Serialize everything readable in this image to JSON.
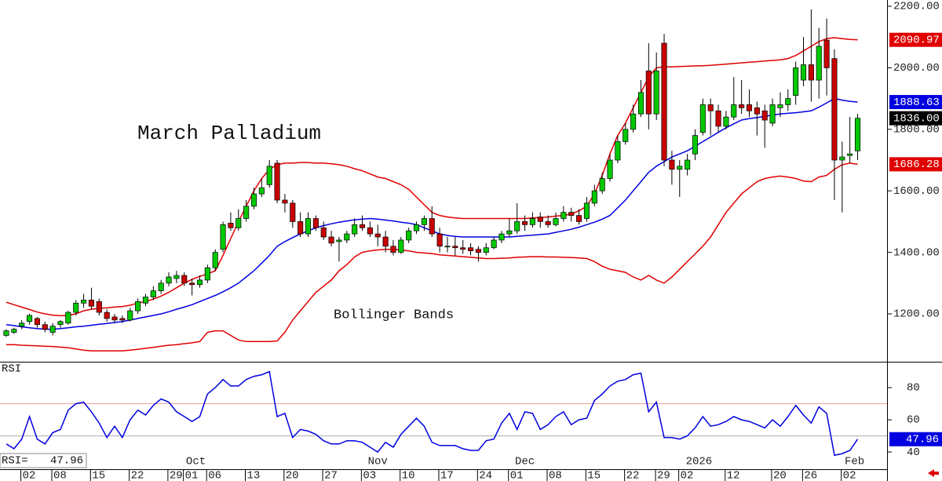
{
  "chart_data": {
    "type": "candlestick",
    "title": "March Palladium",
    "annotation": "Bollinger Bands",
    "xlim": [
      -0.81,
      113.8
    ],
    "ylim": [
      1047,
      2220.4
    ],
    "yticks": [
      {
        "value": 2200,
        "label": "2200.00"
      },
      {
        "value": 2000,
        "label": "2000.00"
      },
      {
        "value": 1800,
        "label": "1800.00"
      },
      {
        "value": 1600,
        "label": "1600.00"
      },
      {
        "value": 1400,
        "label": "1400.00"
      },
      {
        "value": 1200,
        "label": "1200.00"
      }
    ],
    "xticks": [
      {
        "value": 3,
        "label": "02"
      },
      {
        "value": 7,
        "label": "08"
      },
      {
        "value": 12,
        "label": "15"
      },
      {
        "value": 17,
        "label": "22"
      },
      {
        "value": 22,
        "label": "29"
      },
      {
        "value": 24,
        "label": "01"
      },
      {
        "value": 27,
        "label": "06"
      },
      {
        "value": 32,
        "label": "13"
      },
      {
        "value": 37,
        "label": "20"
      },
      {
        "value": 42,
        "label": "27"
      },
      {
        "value": 47,
        "label": "03"
      },
      {
        "value": 52,
        "label": "10"
      },
      {
        "value": 57,
        "label": "17"
      },
      {
        "value": 62,
        "label": "24"
      },
      {
        "value": 66,
        "label": "01"
      },
      {
        "value": 71,
        "label": "08"
      },
      {
        "value": 76,
        "label": "15"
      },
      {
        "value": 81,
        "label": "22"
      },
      {
        "value": 85,
        "label": "29"
      },
      {
        "value": 88,
        "label": "02"
      },
      {
        "value": 94,
        "label": "12"
      },
      {
        "value": 100,
        "label": "20"
      },
      {
        "value": 104,
        "label": "26"
      },
      {
        "value": 109,
        "label": "02"
      }
    ],
    "month_labels": [
      {
        "value": 24.5,
        "label": "Oct"
      },
      {
        "value": 48,
        "label": "Nov"
      },
      {
        "value": 67,
        "label": "Dec"
      },
      {
        "value": 89.5,
        "label": "2026"
      },
      {
        "value": 109.6,
        "label": "Feb"
      }
    ],
    "up_color": "#00c800",
    "down_color": "#c80000",
    "ohlc": [
      [
        1130,
        1150,
        1125,
        1145
      ],
      [
        1140,
        1155,
        1135,
        1150
      ],
      [
        1160,
        1180,
        1150,
        1170
      ],
      [
        1175,
        1200,
        1165,
        1195
      ],
      [
        1185,
        1190,
        1155,
        1165
      ],
      [
        1165,
        1175,
        1140,
        1150
      ],
      [
        1140,
        1170,
        1130,
        1160
      ],
      [
        1165,
        1180,
        1155,
        1175
      ],
      [
        1170,
        1210,
        1165,
        1205
      ],
      [
        1205,
        1245,
        1195,
        1235
      ],
      [
        1235,
        1265,
        1220,
        1245
      ],
      [
        1245,
        1285,
        1215,
        1225
      ],
      [
        1240,
        1250,
        1195,
        1205
      ],
      [
        1205,
        1215,
        1175,
        1185
      ],
      [
        1190,
        1200,
        1170,
        1180
      ],
      [
        1185,
        1195,
        1170,
        1180
      ],
      [
        1180,
        1220,
        1175,
        1210
      ],
      [
        1210,
        1250,
        1200,
        1240
      ],
      [
        1235,
        1265,
        1225,
        1255
      ],
      [
        1255,
        1290,
        1245,
        1275
      ],
      [
        1275,
        1310,
        1265,
        1300
      ],
      [
        1300,
        1335,
        1290,
        1320
      ],
      [
        1315,
        1340,
        1300,
        1325
      ],
      [
        1325,
        1335,
        1290,
        1300
      ],
      [
        1300,
        1315,
        1260,
        1295
      ],
      [
        1295,
        1325,
        1285,
        1310
      ],
      [
        1310,
        1360,
        1300,
        1350
      ],
      [
        1350,
        1410,
        1340,
        1400
      ],
      [
        1410,
        1500,
        1400,
        1490
      ],
      [
        1495,
        1530,
        1470,
        1480
      ],
      [
        1480,
        1540,
        1470,
        1510
      ],
      [
        1510,
        1570,
        1500,
        1550
      ],
      [
        1550,
        1610,
        1540,
        1590
      ],
      [
        1590,
        1640,
        1580,
        1610
      ],
      [
        1620,
        1700,
        1610,
        1680
      ],
      [
        1690,
        1700,
        1560,
        1570
      ],
      [
        1570,
        1590,
        1530,
        1560
      ],
      [
        1560,
        1570,
        1480,
        1500
      ],
      [
        1500,
        1530,
        1450,
        1460
      ],
      [
        1460,
        1530,
        1450,
        1510
      ],
      [
        1510,
        1520,
        1470,
        1480
      ],
      [
        1480,
        1500,
        1440,
        1450
      ],
      [
        1450,
        1470,
        1420,
        1430
      ],
      [
        1435,
        1450,
        1370,
        1440
      ],
      [
        1440,
        1470,
        1430,
        1460
      ],
      [
        1460,
        1510,
        1450,
        1490
      ],
      [
        1490,
        1520,
        1470,
        1480
      ],
      [
        1480,
        1500,
        1450,
        1460
      ],
      [
        1460,
        1490,
        1420,
        1450
      ],
      [
        1450,
        1470,
        1400,
        1420
      ],
      [
        1420,
        1440,
        1390,
        1400
      ],
      [
        1400,
        1450,
        1395,
        1440
      ],
      [
        1440,
        1480,
        1430,
        1470
      ],
      [
        1470,
        1500,
        1460,
        1490
      ],
      [
        1490,
        1520,
        1470,
        1510
      ],
      [
        1510,
        1550,
        1450,
        1460
      ],
      [
        1460,
        1480,
        1400,
        1420
      ],
      [
        1420,
        1450,
        1400,
        1420
      ],
      [
        1420,
        1450,
        1390,
        1415
      ],
      [
        1415,
        1440,
        1395,
        1410
      ],
      [
        1415,
        1430,
        1390,
        1405
      ],
      [
        1410,
        1420,
        1370,
        1400
      ],
      [
        1400,
        1430,
        1390,
        1415
      ],
      [
        1415,
        1450,
        1410,
        1440
      ],
      [
        1440,
        1470,
        1430,
        1460
      ],
      [
        1460,
        1510,
        1450,
        1470
      ],
      [
        1470,
        1560,
        1460,
        1500
      ],
      [
        1500,
        1520,
        1470,
        1490
      ],
      [
        1490,
        1530,
        1480,
        1510
      ],
      [
        1515,
        1530,
        1480,
        1500
      ],
      [
        1500,
        1520,
        1480,
        1490
      ],
      [
        1490,
        1530,
        1485,
        1510
      ],
      [
        1510,
        1550,
        1500,
        1530
      ],
      [
        1530,
        1545,
        1500,
        1520
      ],
      [
        1520,
        1540,
        1490,
        1500
      ],
      [
        1510,
        1580,
        1500,
        1560
      ],
      [
        1560,
        1620,
        1550,
        1600
      ],
      [
        1600,
        1660,
        1590,
        1640
      ],
      [
        1640,
        1720,
        1630,
        1700
      ],
      [
        1700,
        1780,
        1690,
        1760
      ],
      [
        1760,
        1820,
        1750,
        1800
      ],
      [
        1800,
        1880,
        1790,
        1850
      ],
      [
        1850,
        1960,
        1840,
        1920
      ],
      [
        1990,
        2080,
        1800,
        1850
      ],
      [
        1850,
        2050,
        1830,
        1990
      ],
      [
        2080,
        2110,
        1680,
        1700
      ],
      [
        1700,
        1730,
        1620,
        1670
      ],
      [
        1670,
        1700,
        1580,
        1680
      ],
      [
        1670,
        1720,
        1650,
        1700
      ],
      [
        1720,
        1800,
        1700,
        1780
      ],
      [
        1790,
        1900,
        1780,
        1880
      ],
      [
        1880,
        1900,
        1780,
        1860
      ],
      [
        1860,
        1880,
        1790,
        1810
      ],
      [
        1810,
        1860,
        1800,
        1840
      ],
      [
        1840,
        1970,
        1830,
        1880
      ],
      [
        1880,
        1960,
        1850,
        1870
      ],
      [
        1880,
        1930,
        1840,
        1860
      ],
      [
        1870,
        1890,
        1780,
        1850
      ],
      [
        1860,
        1880,
        1740,
        1830
      ],
      [
        1820,
        1900,
        1810,
        1880
      ],
      [
        1870,
        1920,
        1840,
        1880
      ],
      [
        1880,
        1930,
        1860,
        1900
      ],
      [
        1910,
        2020,
        1880,
        2000
      ],
      [
        1960,
        2100,
        1940,
        2010
      ],
      [
        2010,
        2190,
        1890,
        1960
      ],
      [
        1960,
        2130,
        1900,
        2070
      ],
      [
        2090,
        2160,
        1910,
        2000
      ],
      [
        2030,
        2060,
        1570,
        1700
      ],
      [
        1700,
        1760,
        1530,
        1710
      ],
      [
        1715,
        1840,
        1690,
        1720
      ],
      [
        1730,
        1850,
        1700,
        1836
      ]
    ],
    "bands": [
      {
        "color": "#e00000",
        "values": [
          1238,
          1230,
          1222,
          1214,
          1206,
          1200,
          1196,
          1194,
          1195,
          1200,
          1210,
          1215,
          1218,
          1220,
          1222,
          1224,
          1228,
          1235,
          1240,
          1248,
          1258,
          1270,
          1285,
          1300,
          1312,
          1322,
          1330,
          1340,
          1390,
          1445,
          1500,
          1550,
          1600,
          1640,
          1670,
          1685,
          1690,
          1690,
          1692,
          1692,
          1690,
          1690,
          1688,
          1685,
          1680,
          1672,
          1665,
          1655,
          1645,
          1640,
          1630,
          1620,
          1605,
          1580,
          1555,
          1530,
          1520,
          1515,
          1512,
          1510,
          1510,
          1510,
          1510,
          1510,
          1510,
          1510,
          1510,
          1510,
          1512,
          1513,
          1515,
          1518,
          1520,
          1525,
          1535,
          1550,
          1590,
          1650,
          1720,
          1780,
          1820,
          1870,
          1920,
          1970,
          2000,
          2003,
          2003,
          2004,
          2005,
          2006,
          2007,
          2008,
          2010,
          2012,
          2014,
          2016,
          2018,
          2020,
          2022,
          2024,
          2026,
          2030,
          2040,
          2055,
          2070,
          2085,
          2095,
          2098,
          2095,
          2092,
          2090.97
        ]
      },
      {
        "color": "#0000e0",
        "values": [
          1165,
          1162,
          1158,
          1155,
          1152,
          1150,
          1150,
          1152,
          1155,
          1158,
          1160,
          1163,
          1166,
          1169,
          1172,
          1175,
          1180,
          1185,
          1190,
          1195,
          1200,
          1207,
          1215,
          1222,
          1230,
          1240,
          1250,
          1260,
          1272,
          1285,
          1300,
          1320,
          1340,
          1365,
          1390,
          1420,
          1435,
          1448,
          1460,
          1470,
          1480,
          1487,
          1493,
          1498,
          1502,
          1506,
          1508,
          1510,
          1508,
          1505,
          1502,
          1498,
          1495,
          1490,
          1480,
          1470,
          1460,
          1455,
          1452,
          1450,
          1450,
          1450,
          1450,
          1450,
          1450,
          1450,
          1452,
          1454,
          1456,
          1458,
          1460,
          1465,
          1470,
          1475,
          1482,
          1490,
          1498,
          1508,
          1520,
          1545,
          1570,
          1600,
          1630,
          1660,
          1680,
          1695,
          1710,
          1720,
          1730,
          1745,
          1760,
          1775,
          1790,
          1805,
          1818,
          1830,
          1835,
          1838,
          1842,
          1846,
          1850,
          1852,
          1854,
          1857,
          1860,
          1872,
          1886,
          1900,
          1895,
          1891,
          1888.63
        ]
      },
      {
        "color": "#e00000",
        "values": [
          1100,
          1100,
          1098,
          1097,
          1096,
          1095,
          1094,
          1092,
          1090,
          1086,
          1082,
          1080,
          1080,
          1080,
          1080,
          1080,
          1082,
          1085,
          1088,
          1091,
          1095,
          1098,
          1100,
          1103,
          1106,
          1110,
          1140,
          1145,
          1145,
          1130,
          1115,
          1110,
          1110,
          1110,
          1110,
          1112,
          1140,
          1180,
          1210,
          1240,
          1270,
          1290,
          1310,
          1340,
          1360,
          1385,
          1400,
          1405,
          1408,
          1410,
          1410,
          1408,
          1405,
          1400,
          1398,
          1396,
          1392,
          1390,
          1388,
          1386,
          1384,
          1382,
          1380,
          1380,
          1381,
          1382,
          1384,
          1385,
          1386,
          1386,
          1385,
          1385,
          1384,
          1383,
          1382,
          1380,
          1370,
          1355,
          1345,
          1340,
          1335,
          1320,
          1310,
          1325,
          1310,
          1300,
          1320,
          1345,
          1370,
          1395,
          1420,
          1450,
          1490,
          1530,
          1560,
          1590,
          1610,
          1630,
          1640,
          1645,
          1648,
          1645,
          1640,
          1632,
          1630,
          1645,
          1650,
          1670,
          1685,
          1690,
          1686.28
        ]
      }
    ],
    "price_labels": [
      {
        "value": 2090.97,
        "label": "2090.97",
        "color": "#e00000"
      },
      {
        "value": 1888.63,
        "label": "1888.63",
        "color": "#0000e0"
      },
      {
        "value": 1836,
        "label": "1836.00",
        "color": "#000000"
      },
      {
        "value": 1686.28,
        "label": "1686.28",
        "color": "#e00000"
      }
    ],
    "rsi": {
      "label": "RSI",
      "legend_label": "RSI=",
      "color": "#0000e0",
      "ylim": [
        29.3,
        95.6
      ],
      "yticks": [
        80,
        60,
        40
      ],
      "ref_lines": [
        {
          "value": 70,
          "color": "#f0a0a0"
        },
        {
          "value": 50,
          "color": "#b0b0b0"
        }
      ],
      "values": [
        45,
        42,
        48,
        62,
        48,
        45,
        52,
        54,
        66,
        70,
        71,
        65,
        58,
        49,
        56,
        49,
        60,
        66,
        63,
        69,
        73,
        71,
        65,
        62,
        59,
        62,
        76,
        80,
        85,
        81,
        81,
        85,
        87,
        88,
        90,
        62,
        64,
        49,
        54,
        53,
        51,
        47,
        45,
        45,
        47,
        47,
        46,
        43,
        40,
        46,
        43,
        51,
        56,
        61,
        56,
        46,
        44,
        44,
        44,
        42,
        41,
        41,
        47,
        48,
        58,
        64,
        54,
        65,
        64,
        54,
        57,
        62,
        65,
        57,
        60,
        61,
        72,
        76,
        81,
        84,
        85,
        88,
        89,
        65,
        71,
        49,
        49,
        48,
        50,
        55,
        62,
        56,
        57,
        59,
        62,
        60,
        59,
        57,
        55,
        60,
        56,
        62,
        69,
        63,
        58,
        68,
        64,
        38,
        39,
        41,
        47.96
      ]
    }
  }
}
